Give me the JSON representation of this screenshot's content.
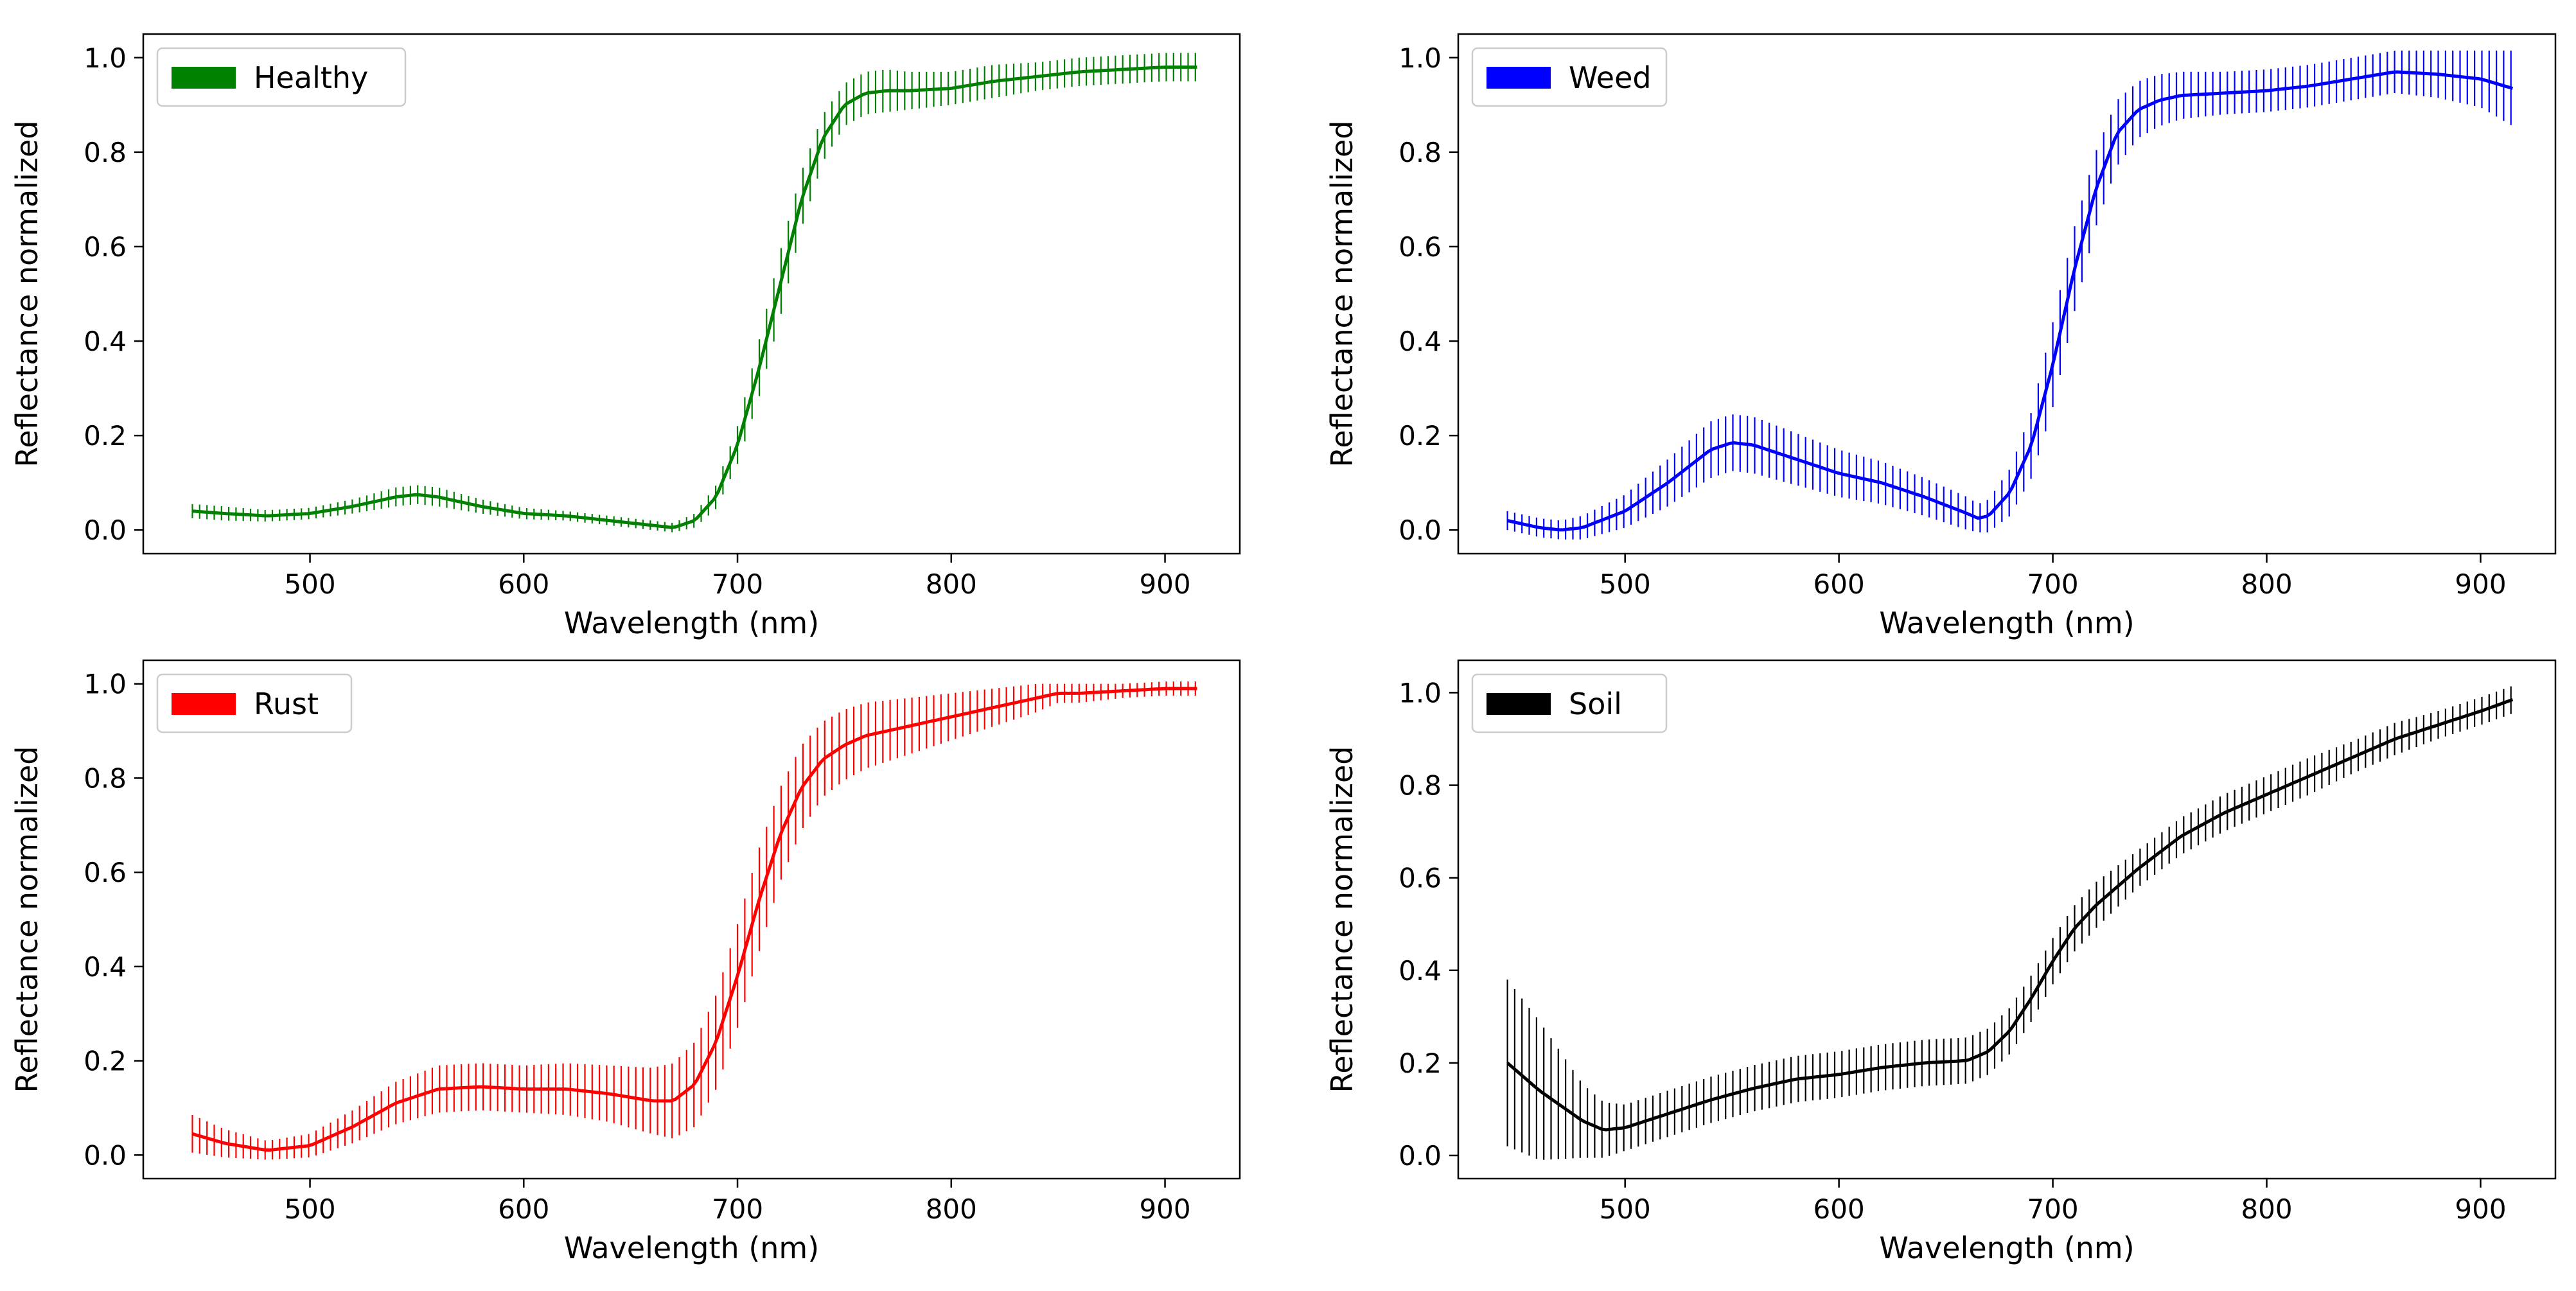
{
  "chart_data": [
    {
      "type": "line",
      "title": "",
      "xlabel": "Wavelength (nm)",
      "ylabel": "Reflectance normalized",
      "xlim": [
        422,
        935
      ],
      "ylim": [
        -0.05,
        1.05
      ],
      "xticks": [
        500,
        600,
        700,
        800,
        900
      ],
      "xtick_labels": [
        "500",
        "600",
        "700",
        "800",
        "900"
      ],
      "yticks": [
        0.0,
        0.2,
        0.4,
        0.6,
        0.8,
        1.0
      ],
      "ytick_labels": [
        "0.0",
        "0.2",
        "0.4",
        "0.6",
        "0.8",
        "1.0"
      ],
      "grid": false,
      "legend_position": "top-left",
      "series": [
        {
          "name": "Healthy",
          "color": "#008000",
          "x": [
            445,
            460,
            480,
            500,
            520,
            540,
            550,
            560,
            580,
            600,
            620,
            640,
            660,
            670,
            680,
            690,
            700,
            710,
            720,
            730,
            740,
            750,
            760,
            770,
            780,
            800,
            820,
            840,
            860,
            880,
            900,
            915
          ],
          "y": [
            0.04,
            0.035,
            0.03,
            0.035,
            0.05,
            0.07,
            0.075,
            0.07,
            0.05,
            0.035,
            0.03,
            0.02,
            0.01,
            0.005,
            0.02,
            0.07,
            0.18,
            0.34,
            0.52,
            0.7,
            0.83,
            0.9,
            0.925,
            0.93,
            0.93,
            0.935,
            0.95,
            0.96,
            0.97,
            0.975,
            0.98,
            0.98
          ],
          "err": [
            0.015,
            0.015,
            0.012,
            0.012,
            0.015,
            0.02,
            0.02,
            0.02,
            0.015,
            0.012,
            0.01,
            0.01,
            0.01,
            0.01,
            0.015,
            0.025,
            0.04,
            0.06,
            0.07,
            0.06,
            0.05,
            0.045,
            0.045,
            0.045,
            0.04,
            0.035,
            0.035,
            0.03,
            0.03,
            0.03,
            0.03,
            0.03
          ]
        }
      ]
    },
    {
      "type": "line",
      "title": "",
      "xlabel": "Wavelength (nm)",
      "ylabel": "Reflectance normalized",
      "xlim": [
        422,
        935
      ],
      "ylim": [
        -0.05,
        1.05
      ],
      "xticks": [
        500,
        600,
        700,
        800,
        900
      ],
      "xtick_labels": [
        "500",
        "600",
        "700",
        "800",
        "900"
      ],
      "yticks": [
        0.0,
        0.2,
        0.4,
        0.6,
        0.8,
        1.0
      ],
      "ytick_labels": [
        "0.0",
        "0.2",
        "0.4",
        "0.6",
        "0.8",
        "1.0"
      ],
      "grid": false,
      "legend_position": "top-left",
      "series": [
        {
          "name": "Weed",
          "color": "#0000ff",
          "x": [
            445,
            460,
            470,
            480,
            500,
            520,
            540,
            550,
            560,
            580,
            600,
            620,
            640,
            660,
            665,
            670,
            680,
            690,
            700,
            710,
            720,
            730,
            740,
            750,
            760,
            780,
            800,
            820,
            840,
            860,
            880,
            900,
            915
          ],
          "y": [
            0.02,
            0.005,
            0.0,
            0.005,
            0.04,
            0.1,
            0.17,
            0.185,
            0.18,
            0.15,
            0.12,
            0.1,
            0.07,
            0.035,
            0.025,
            0.03,
            0.08,
            0.18,
            0.35,
            0.55,
            0.72,
            0.84,
            0.89,
            0.91,
            0.92,
            0.925,
            0.93,
            0.94,
            0.955,
            0.97,
            0.965,
            0.955,
            0.935
          ],
          "err": [
            0.02,
            0.02,
            0.02,
            0.025,
            0.035,
            0.05,
            0.06,
            0.06,
            0.06,
            0.055,
            0.05,
            0.045,
            0.04,
            0.035,
            0.03,
            0.035,
            0.05,
            0.07,
            0.09,
            0.09,
            0.08,
            0.07,
            0.06,
            0.055,
            0.05,
            0.045,
            0.045,
            0.045,
            0.045,
            0.045,
            0.05,
            0.06,
            0.08
          ]
        }
      ]
    },
    {
      "type": "line",
      "title": "",
      "xlabel": "Wavelength (nm)",
      "ylabel": "Reflectance normalized",
      "xlim": [
        422,
        935
      ],
      "ylim": [
        -0.05,
        1.05
      ],
      "xticks": [
        500,
        600,
        700,
        800,
        900
      ],
      "xtick_labels": [
        "500",
        "600",
        "700",
        "800",
        "900"
      ],
      "yticks": [
        0.0,
        0.2,
        0.4,
        0.6,
        0.8,
        1.0
      ],
      "ytick_labels": [
        "0.0",
        "0.2",
        "0.4",
        "0.6",
        "0.8",
        "1.0"
      ],
      "grid": false,
      "legend_position": "top-left",
      "series": [
        {
          "name": "Rust",
          "color": "#ff0000",
          "x": [
            445,
            460,
            480,
            500,
            520,
            540,
            560,
            580,
            600,
            620,
            640,
            660,
            670,
            680,
            690,
            700,
            710,
            720,
            730,
            740,
            750,
            760,
            770,
            780,
            800,
            820,
            840,
            850,
            860,
            880,
            900,
            915
          ],
          "y": [
            0.045,
            0.025,
            0.01,
            0.02,
            0.06,
            0.11,
            0.14,
            0.145,
            0.14,
            0.14,
            0.13,
            0.115,
            0.115,
            0.15,
            0.24,
            0.38,
            0.54,
            0.68,
            0.78,
            0.84,
            0.87,
            0.89,
            0.9,
            0.91,
            0.93,
            0.95,
            0.97,
            0.98,
            0.98,
            0.985,
            0.99,
            0.99
          ],
          "err": [
            0.04,
            0.03,
            0.02,
            0.025,
            0.035,
            0.045,
            0.05,
            0.05,
            0.05,
            0.055,
            0.06,
            0.07,
            0.08,
            0.09,
            0.1,
            0.11,
            0.11,
            0.1,
            0.09,
            0.08,
            0.075,
            0.07,
            0.065,
            0.06,
            0.05,
            0.04,
            0.03,
            0.02,
            0.02,
            0.015,
            0.015,
            0.015
          ]
        }
      ]
    },
    {
      "type": "line",
      "title": "",
      "xlabel": "Wavelength (nm)",
      "ylabel": "Reflectance normalized",
      "xlim": [
        422,
        935
      ],
      "ylim": [
        -0.05,
        1.07
      ],
      "xticks": [
        500,
        600,
        700,
        800,
        900
      ],
      "xtick_labels": [
        "500",
        "600",
        "700",
        "800",
        "900"
      ],
      "yticks": [
        0.0,
        0.2,
        0.4,
        0.6,
        0.8,
        1.0
      ],
      "ytick_labels": [
        "0.0",
        "0.2",
        "0.4",
        "0.6",
        "0.8",
        "1.0"
      ],
      "grid": false,
      "legend_position": "top-left",
      "series": [
        {
          "name": "Soil",
          "color": "#000000",
          "x": [
            445,
            460,
            480,
            490,
            500,
            520,
            540,
            560,
            580,
            600,
            620,
            640,
            660,
            670,
            680,
            690,
            700,
            710,
            720,
            740,
            760,
            780,
            800,
            820,
            840,
            860,
            880,
            900,
            915
          ],
          "y": [
            0.2,
            0.14,
            0.075,
            0.055,
            0.06,
            0.09,
            0.12,
            0.145,
            0.165,
            0.175,
            0.19,
            0.2,
            0.205,
            0.225,
            0.27,
            0.34,
            0.42,
            0.49,
            0.54,
            0.62,
            0.69,
            0.74,
            0.78,
            0.82,
            0.86,
            0.9,
            0.93,
            0.96,
            0.985
          ],
          "err": [
            0.18,
            0.15,
            0.08,
            0.06,
            0.05,
            0.05,
            0.05,
            0.05,
            0.05,
            0.05,
            0.05,
            0.05,
            0.05,
            0.05,
            0.05,
            0.05,
            0.05,
            0.05,
            0.05,
            0.04,
            0.04,
            0.04,
            0.04,
            0.04,
            0.035,
            0.035,
            0.03,
            0.03,
            0.03
          ]
        }
      ]
    }
  ]
}
